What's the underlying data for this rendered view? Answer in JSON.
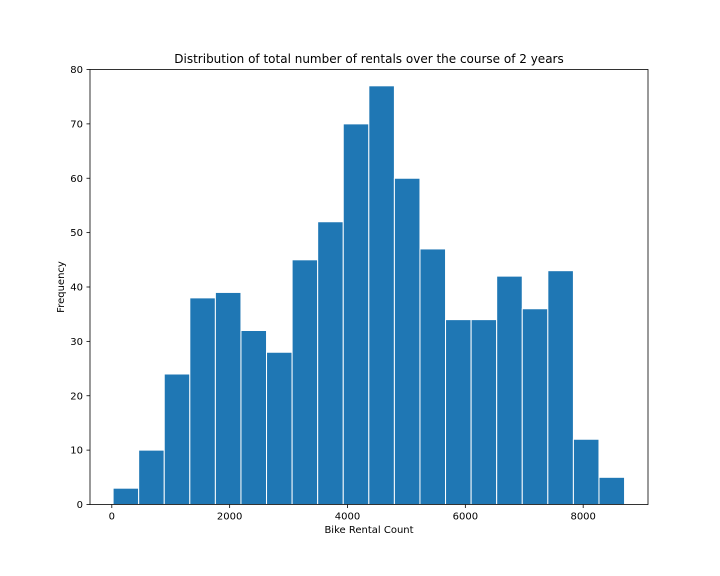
{
  "chart_data": {
    "type": "bar",
    "title": "Distribution of total number of rentals over the course of 2 years",
    "xlabel": "Bike Rental Count",
    "ylabel": "Frequency",
    "xlim": [
      -370,
      9100
    ],
    "ylim": [
      0,
      80
    ],
    "xticks": [
      0,
      2000,
      4000,
      6000,
      8000
    ],
    "yticks": [
      0,
      10,
      20,
      30,
      40,
      50,
      60,
      70,
      80
    ],
    "bin_edges": [
      22,
      456,
      890,
      1324,
      1758,
      2192,
      2626,
      3060,
      3494,
      3928,
      4362,
      4796,
      5230,
      5664,
      6098,
      6532,
      6966,
      7400,
      7834,
      8268,
      8702
    ],
    "values": [
      3,
      10,
      24,
      38,
      39,
      32,
      28,
      45,
      52,
      70,
      77,
      60,
      47,
      34,
      34,
      42,
      36,
      43,
      12,
      5
    ],
    "bar_color": "#1f77b4",
    "edge_color": "#ffffff",
    "grid": false
  }
}
